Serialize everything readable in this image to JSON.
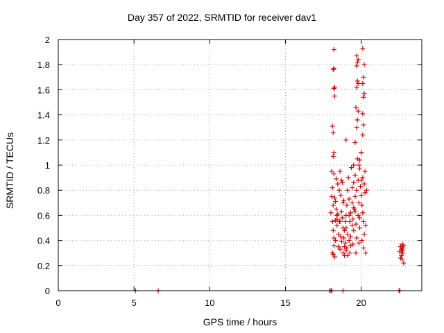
{
  "chart_data": {
    "type": "scatter",
    "title": "Day 357 of 2022, SRMTID for receiver dav1",
    "xlabel": "GPS time / hours",
    "ylabel": "SRMTID / TECUs",
    "xlim": [
      0,
      24
    ],
    "ylim": [
      0,
      2
    ],
    "xticks": [
      0,
      5,
      10,
      15,
      20
    ],
    "xtick_labels": [
      "0",
      "5",
      "10",
      "15",
      "20"
    ],
    "yticks": [
      0,
      0.2,
      0.4,
      0.6,
      0.8,
      1,
      1.2,
      1.4,
      1.6,
      1.8,
      2
    ],
    "ytick_labels": [
      "0",
      "0.2",
      "0.4",
      "0.6",
      "0.8",
      "1",
      "1.2",
      "1.4",
      "1.6",
      "1.8",
      "2"
    ],
    "grid": true,
    "marker": "+",
    "color": "#e00000",
    "series": [
      {
        "name": "dav1",
        "points": [
          [
            5.1,
            0
          ],
          [
            6.6,
            0
          ],
          [
            17.9,
            0
          ],
          [
            18.0,
            0
          ],
          [
            18.05,
            0
          ],
          [
            18.8,
            0
          ],
          [
            22.5,
            0
          ],
          [
            22.55,
            0
          ],
          [
            18.0,
            0.62
          ],
          [
            18.05,
            0.75
          ],
          [
            18.1,
            0.82
          ],
          [
            18.1,
            0.55
          ],
          [
            18.15,
            0.48
          ],
          [
            18.2,
            0.93
          ],
          [
            18.2,
            0.36
          ],
          [
            18.25,
            0.27
          ],
          [
            18.1,
            0.3
          ],
          [
            18.15,
            0.29
          ],
          [
            18.3,
            0.71
          ],
          [
            18.3,
            0.4
          ],
          [
            18.35,
            0.65
          ],
          [
            18.4,
            0.52
          ],
          [
            18.4,
            0.57
          ],
          [
            18.45,
            0.85
          ],
          [
            18.45,
            0.61
          ],
          [
            18.5,
            0.45
          ],
          [
            18.5,
            0.35
          ],
          [
            18.55,
            0.55
          ],
          [
            18.6,
            0.95
          ],
          [
            18.6,
            0.33
          ],
          [
            18.65,
            0.76
          ],
          [
            18.7,
            0.88
          ],
          [
            18.7,
            0.63
          ],
          [
            18.75,
            0.58
          ],
          [
            18.8,
            0.3
          ],
          [
            18.8,
            0.5
          ],
          [
            18.85,
            0.72
          ],
          [
            18.85,
            0.42
          ],
          [
            18.9,
            0.28
          ],
          [
            18.9,
            0.35
          ],
          [
            18.95,
            0.38
          ],
          [
            19.0,
            0.32
          ],
          [
            19.0,
            0.6
          ],
          [
            19.05,
            0.68
          ],
          [
            19.1,
            0.8
          ],
          [
            19.1,
            0.45
          ],
          [
            19.15,
            0.9
          ],
          [
            19.2,
            0.73
          ],
          [
            19.2,
            0.4
          ],
          [
            19.25,
            0.55
          ],
          [
            19.3,
            0.62
          ],
          [
            19.3,
            0.36
          ],
          [
            19.35,
            0.98
          ],
          [
            19.4,
            0.82
          ],
          [
            19.4,
            0.7
          ],
          [
            19.45,
            0.57
          ],
          [
            19.5,
            0.48
          ],
          [
            19.5,
            0.86
          ],
          [
            19.55,
            0.65
          ],
          [
            19.6,
            0.92
          ],
          [
            19.6,
            0.75
          ],
          [
            19.65,
            0.53
          ],
          [
            19.7,
            0.8
          ],
          [
            19.7,
            0.42
          ],
          [
            19.75,
            1.05
          ],
          [
            19.8,
            0.88
          ],
          [
            19.8,
            0.6
          ],
          [
            19.85,
            0.7
          ],
          [
            19.9,
            0.97
          ],
          [
            19.9,
            0.5
          ],
          [
            19.95,
            0.83
          ],
          [
            20.0,
            1.1
          ],
          [
            20.0,
            0.76
          ],
          [
            20.05,
            0.4
          ],
          [
            20.1,
            0.62
          ],
          [
            20.1,
            0.9
          ],
          [
            20.15,
            0.55
          ],
          [
            20.2,
            0.85
          ],
          [
            20.2,
            0.45
          ],
          [
            20.25,
            0.78
          ],
          [
            20.3,
            0.52
          ],
          [
            20.3,
            0.3
          ],
          [
            20.35,
            0.8
          ],
          [
            18.05,
            0.95
          ],
          [
            18.15,
            0.68
          ],
          [
            18.25,
            0.74
          ],
          [
            18.35,
            0.89
          ],
          [
            18.55,
            0.8
          ],
          [
            18.65,
            0.43
          ],
          [
            18.75,
            0.86
          ],
          [
            18.95,
            0.55
          ],
          [
            19.05,
            0.34
          ],
          [
            19.25,
            0.3
          ],
          [
            19.45,
            0.37
          ],
          [
            19.65,
            0.3
          ],
          [
            19.85,
            0.38
          ],
          [
            20.05,
            0.68
          ],
          [
            20.15,
            0.34
          ],
          [
            20.25,
            0.95
          ],
          [
            19.2,
            0.6
          ],
          [
            19.6,
            0.63
          ],
          [
            19.0,
            0.5
          ],
          [
            19.1,
            0.28
          ],
          [
            19.4,
            0.52
          ],
          [
            18.9,
            0.48
          ],
          [
            18.7,
            0.39
          ],
          [
            19.3,
            0.43
          ],
          [
            19.5,
            0.66
          ],
          [
            19.9,
            0.58
          ],
          [
            20.0,
            0.88
          ],
          [
            18.2,
            0.42
          ],
          [
            18.3,
            0.56
          ],
          [
            18.4,
            0.6
          ],
          [
            18.6,
            0.55
          ],
          [
            18.8,
            0.7
          ],
          [
            18.15,
            1.07
          ],
          [
            18.2,
            1.1
          ],
          [
            18.15,
            1.26
          ],
          [
            18.1,
            1.31
          ],
          [
            18.25,
            1.55
          ],
          [
            18.2,
            1.61
          ],
          [
            18.25,
            1.62
          ],
          [
            18.15,
            1.76
          ],
          [
            18.2,
            1.77
          ],
          [
            18.2,
            1.92
          ],
          [
            19.0,
            1.2
          ],
          [
            19.5,
            1.0
          ],
          [
            19.6,
            1.18
          ],
          [
            19.7,
            1.3
          ],
          [
            19.75,
            1.36
          ],
          [
            19.8,
            1.43
          ],
          [
            19.65,
            1.46
          ],
          [
            19.7,
            1.62
          ],
          [
            19.75,
            1.67
          ],
          [
            19.8,
            1.65
          ],
          [
            19.7,
            1.79
          ],
          [
            19.75,
            1.82
          ],
          [
            19.7,
            1.87
          ],
          [
            19.8,
            1.84
          ],
          [
            20.0,
            1.1
          ],
          [
            20.1,
            1.24
          ],
          [
            20.15,
            1.32
          ],
          [
            20.1,
            1.41
          ],
          [
            20.15,
            1.54
          ],
          [
            20.2,
            1.57
          ],
          [
            20.1,
            1.65
          ],
          [
            20.15,
            1.7
          ],
          [
            20.2,
            1.8
          ],
          [
            20.1,
            1.93
          ],
          [
            19.85,
            1.0
          ],
          [
            19.9,
            1.04
          ],
          [
            22.6,
            0.35
          ],
          [
            22.65,
            0.33
          ],
          [
            22.7,
            0.37
          ],
          [
            22.75,
            0.3
          ],
          [
            22.6,
            0.26
          ],
          [
            22.7,
            0.25
          ],
          [
            22.8,
            0.22
          ],
          [
            22.75,
            0.34
          ],
          [
            22.55,
            0.31
          ],
          [
            22.65,
            0.28
          ],
          [
            22.8,
            0.36
          ],
          [
            22.7,
            0.32
          ]
        ]
      }
    ]
  }
}
